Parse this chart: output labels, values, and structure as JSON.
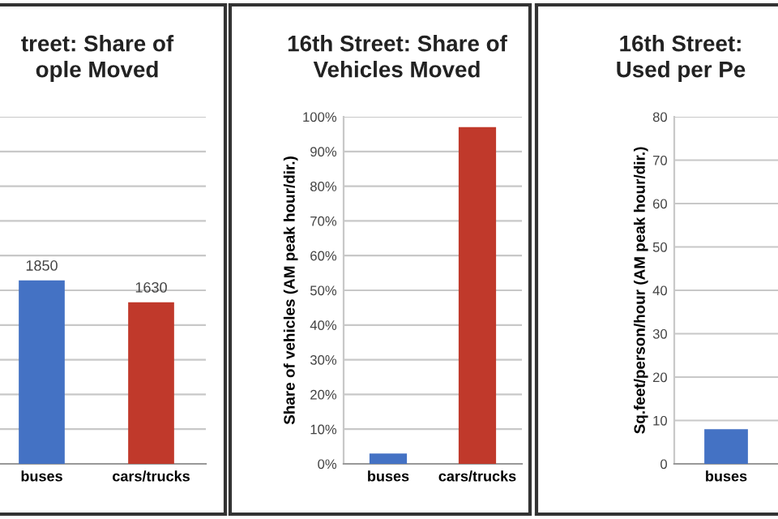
{
  "chart_data": [
    {
      "type": "bar",
      "title": "treet: Share of\nople Moved",
      "categories": [
        "buses",
        "cars/trucks"
      ],
      "values": [
        1850,
        1630
      ],
      "colors": [
        "#4472c4",
        "#c0392b"
      ],
      "ylim": [
        0,
        3500
      ],
      "yticks": [
        {
          "value": 0,
          "label": null
        },
        {
          "value": 350,
          "label": null
        },
        {
          "value": 700,
          "label": null
        },
        {
          "value": 1050,
          "label": null
        },
        {
          "value": 1400,
          "label": null
        },
        {
          "value": 1750,
          "label": null
        },
        {
          "value": 2100,
          "label": null
        },
        {
          "value": 2450,
          "label": null
        },
        {
          "value": 2800,
          "label": null
        },
        {
          "value": 3150,
          "label": null
        },
        {
          "value": 3500,
          "label": null
        }
      ],
      "tick_labels": "x",
      "data_labels": true,
      "grid": "y",
      "legend": false
    },
    {
      "type": "bar",
      "title": "16th Street: Share of\nVehicles Moved",
      "ylabel": "Share of vehicles (AM peak hour/dir.)",
      "categories": [
        "buses",
        "cars/trucks"
      ],
      "values": [
        3,
        97
      ],
      "colors": [
        "#4472c4",
        "#c0392b"
      ],
      "ylim": [
        0,
        100
      ],
      "yticks": [
        {
          "value": 0,
          "label": "0%"
        },
        {
          "value": 10,
          "label": "10%"
        },
        {
          "value": 20,
          "label": "20%"
        },
        {
          "value": 30,
          "label": "30%"
        },
        {
          "value": 40,
          "label": "40%"
        },
        {
          "value": 50,
          "label": "50%"
        },
        {
          "value": 60,
          "label": "60%"
        },
        {
          "value": 70,
          "label": "70%"
        },
        {
          "value": 80,
          "label": "80%"
        },
        {
          "value": 90,
          "label": "90%"
        },
        {
          "value": 100,
          "label": "100%"
        }
      ],
      "grid": "y",
      "legend": false
    },
    {
      "type": "bar",
      "title": "16th Street:\nUsed per Pe",
      "ylabel": "Sq.feet/person/hour (AM peak hour/dir.)",
      "categories": [
        "buses"
      ],
      "values": [
        8
      ],
      "colors": [
        "#4472c4"
      ],
      "ylim": [
        0,
        80
      ],
      "yticks": [
        0,
        10,
        20,
        30,
        40,
        50,
        60,
        70,
        80
      ],
      "grid": "y",
      "legend": false
    }
  ]
}
